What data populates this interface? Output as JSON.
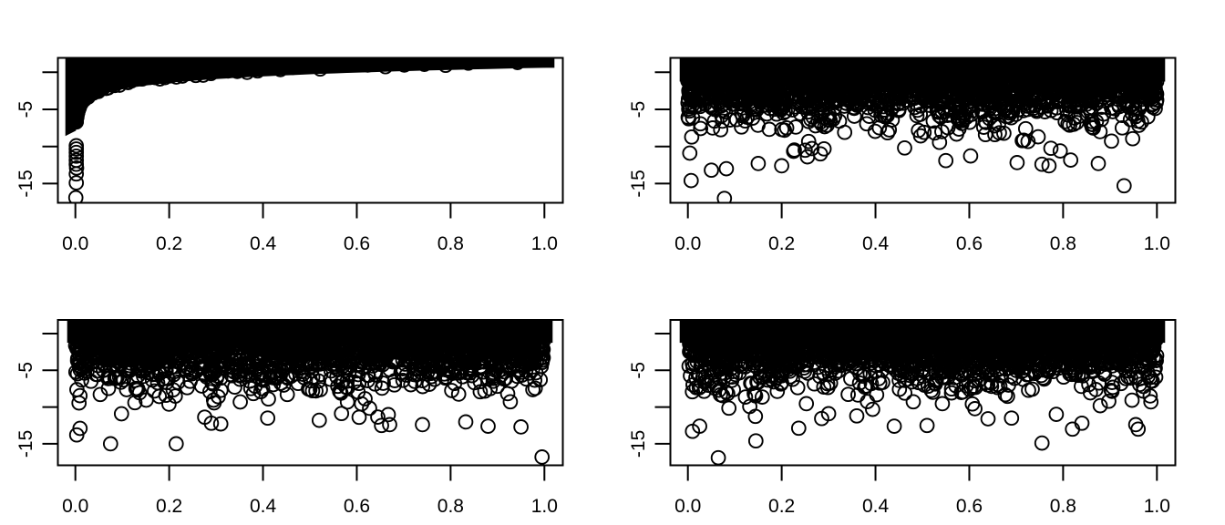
{
  "figure": {
    "background_color": "#ffffff",
    "axis_color": "#000000",
    "point_color": "#000000",
    "marker": "open-circle",
    "title": "",
    "grid": "off",
    "legend": "none"
  },
  "chart_data": [
    {
      "position": "top-left",
      "type": "scatter",
      "marker": "open-circle",
      "description": "Dense band of open circles filling the area between the curve y = 1.5 + 1.26*ln(x) and the top of the panel (values clipped at panel top); a solid spike of points near x = 0 runs down to about -10 with isolated low outliers below it.",
      "band": {
        "lower_curve": "y = a + b*ln(x)",
        "a": 1.5,
        "b": 1.26,
        "upper": "clipped-at-panel-top",
        "x_min": 0.0012
      },
      "spike": {
        "x": 0.0,
        "solid_down_to": -8.6
      },
      "column_dots": {
        "x": 0.002,
        "y": [
          -9.9,
          -10.35,
          -10.8,
          -11.3,
          -11.85
        ]
      },
      "outliers": [
        [
          0.002,
          -12.4
        ],
        [
          0.0025,
          -12.9
        ],
        [
          0.002,
          -13.7
        ],
        [
          0.002,
          -14.9
        ],
        [
          0.001,
          -16.9
        ]
      ],
      "scallop_seed": 5,
      "xlim": [
        -0.04,
        1.04
      ],
      "ylim": [
        -17.6,
        2.0
      ],
      "x_tick_values": [
        0.0,
        0.2,
        0.4,
        0.6,
        0.8,
        1.0
      ],
      "x_tick_labels": [
        "0.0",
        "0.2",
        "0.4",
        "0.6",
        "0.8",
        "1.0"
      ],
      "y_tick_values": [
        0,
        -5,
        -10,
        -15
      ],
      "y_tick_labels": [
        "",
        "-5",
        "",
        "-15"
      ],
      "xlabel": "",
      "ylabel": ""
    },
    {
      "position": "top-right",
      "type": "scatter",
      "marker": "open-circle",
      "description": "Random scatter: x uniform on (0,1); y densely packed (solid black) from the clipped panel top down to about -3, thinning to sparse open circles with a tail reaching about -17.",
      "points_model": {
        "kind": "random-sample",
        "n": 2600,
        "x_dist": "uniform(0,1)",
        "y_model": "offset - sum of 5 Exp(1)",
        "offset": 3.2,
        "seed": 7,
        "solid_rect_down_to": -1.25
      },
      "outliers": [
        [
          0.007,
          -14.6
        ],
        [
          0.078,
          -17.0
        ],
        [
          0.082,
          -13.0
        ],
        [
          0.15,
          -12.3
        ],
        [
          0.2,
          -12.6
        ],
        [
          0.25,
          -10.5
        ],
        [
          0.255,
          -11.4
        ],
        [
          0.004,
          -10.9
        ],
        [
          0.93,
          -15.3
        ],
        [
          0.755,
          -12.4
        ],
        [
          0.77,
          -12.6
        ],
        [
          0.875,
          -12.3
        ],
        [
          0.55,
          -11.9
        ]
      ],
      "xlim": [
        -0.04,
        1.04
      ],
      "ylim": [
        -17.6,
        2.0
      ],
      "x_tick_values": [
        0.0,
        0.2,
        0.4,
        0.6,
        0.8,
        1.0
      ],
      "x_tick_labels": [
        "0.0",
        "0.2",
        "0.4",
        "0.6",
        "0.8",
        "1.0"
      ],
      "y_tick_values": [
        0,
        -5,
        -10,
        -15
      ],
      "y_tick_labels": [
        "",
        "-5",
        "",
        "-15"
      ],
      "xlabel": "",
      "ylabel": ""
    },
    {
      "position": "bottom-left",
      "type": "scatter",
      "marker": "open-circle",
      "description": "Random scatter: x uniform on (0,1); y densely packed (solid black) from the clipped panel top down to about -3, thinning to sparse open circles; lowest point near x = 1 at about -16.8.",
      "points_model": {
        "kind": "random-sample",
        "n": 2600,
        "x_dist": "uniform(0,1)",
        "y_model": "offset - sum of 5 Exp(1)",
        "offset": 3.2,
        "seed": 8,
        "solid_rect_down_to": -1.25
      },
      "outliers": [
        [
          0.075,
          -15.0
        ],
        [
          0.215,
          -15.0
        ],
        [
          0.995,
          -16.8
        ],
        [
          0.003,
          -13.8
        ],
        [
          0.01,
          -12.9
        ],
        [
          0.67,
          -12.4
        ],
        [
          0.74,
          -12.4
        ],
        [
          0.88,
          -12.6
        ],
        [
          0.95,
          -12.7
        ],
        [
          0.29,
          -12.2
        ],
        [
          0.31,
          -12.3
        ],
        [
          0.41,
          -11.5
        ],
        [
          0.52,
          -11.8
        ]
      ],
      "xlim": [
        -0.04,
        1.04
      ],
      "ylim": [
        -17.9,
        1.9
      ],
      "x_tick_values": [
        0.0,
        0.2,
        0.4,
        0.6,
        0.8,
        1.0
      ],
      "x_tick_labels": [
        "0.0",
        "0.2",
        "0.4",
        "0.6",
        "0.8",
        "1.0"
      ],
      "y_tick_values": [
        0,
        -5,
        -10,
        -15
      ],
      "y_tick_labels": [
        "",
        "-5",
        "",
        "-15"
      ],
      "xlabel": "",
      "ylabel": ""
    },
    {
      "position": "bottom-right",
      "type": "scatter",
      "marker": "open-circle",
      "description": "Random scatter: x uniform on (0,1); y densely packed (solid black) from the clipped panel top down to about -3, thinning to sparse open circles; lowest point near x = 0.065 at about -16.9.",
      "points_model": {
        "kind": "random-sample",
        "n": 2600,
        "x_dist": "uniform(0,1)",
        "y_model": "offset - sum of 5 Exp(1)",
        "offset": 3.2,
        "seed": 9,
        "solid_rect_down_to": -1.25
      },
      "outliers": [
        [
          0.065,
          -16.9
        ],
        [
          0.145,
          -14.6
        ],
        [
          0.755,
          -14.9
        ],
        [
          0.82,
          -13.0
        ],
        [
          0.44,
          -12.6
        ],
        [
          0.51,
          -12.5
        ],
        [
          0.84,
          -12.2
        ],
        [
          0.955,
          -12.4
        ],
        [
          0.96,
          -13.0
        ],
        [
          0.64,
          -11.6
        ],
        [
          0.69,
          -11.5
        ],
        [
          0.3,
          -10.9
        ],
        [
          0.36,
          -11.2
        ],
        [
          0.01,
          -13.3
        ],
        [
          0.025,
          -12.6
        ]
      ],
      "xlim": [
        -0.04,
        1.04
      ],
      "ylim": [
        -17.9,
        1.9
      ],
      "x_tick_values": [
        0.0,
        0.2,
        0.4,
        0.6,
        0.8,
        1.0
      ],
      "x_tick_labels": [
        "0.0",
        "0.2",
        "0.4",
        "0.6",
        "0.8",
        "1.0"
      ],
      "y_tick_values": [
        0,
        -5,
        -10,
        -15
      ],
      "y_tick_labels": [
        "",
        "-5",
        "",
        "-15"
      ],
      "xlabel": "",
      "ylabel": ""
    }
  ]
}
